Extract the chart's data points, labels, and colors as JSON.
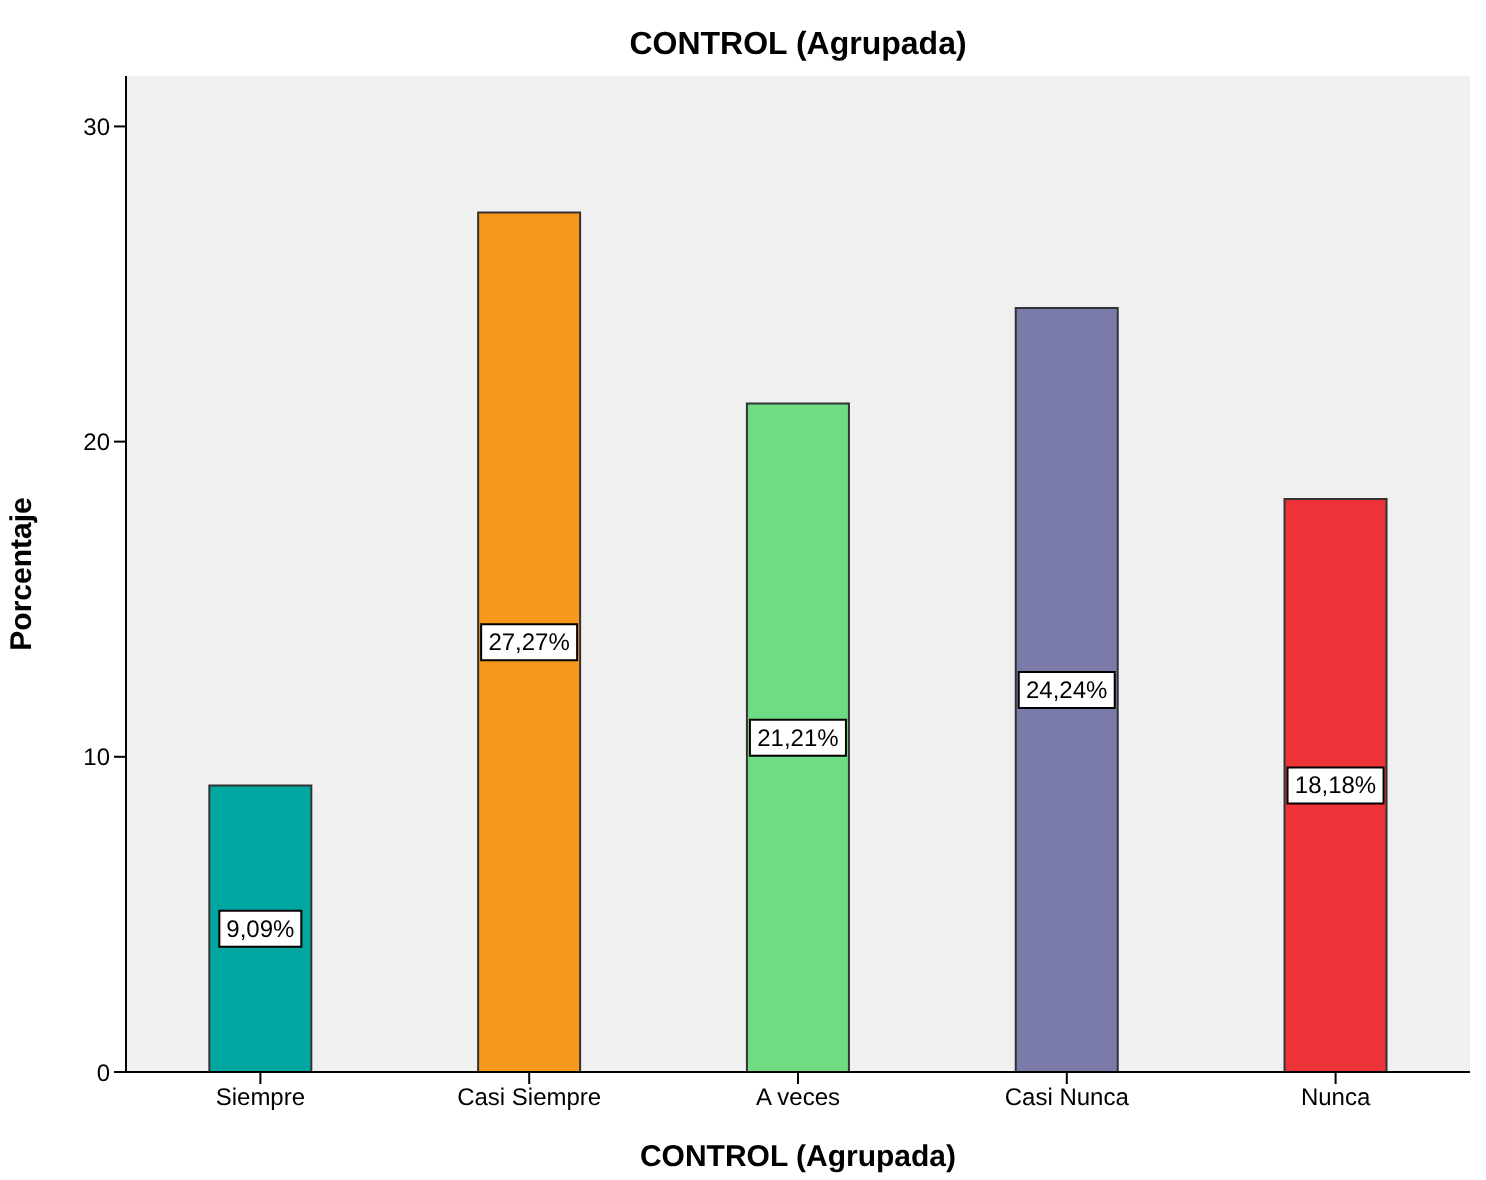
{
  "chart_data": {
    "type": "bar",
    "title": "CONTROL (Agrupada)",
    "xlabel": "CONTROL (Agrupada)",
    "ylabel": "Porcentaje",
    "categories": [
      "Siempre",
      "Casi Siempre",
      "A veces",
      "Casi Nunca",
      "Nunca"
    ],
    "values": [
      9.09,
      27.27,
      21.21,
      24.24,
      18.18
    ],
    "value_labels": [
      "9,09%",
      "27,27%",
      "21,21%",
      "24,24%",
      "18,18%"
    ],
    "colors": [
      "#00a6a0",
      "#f7981d",
      "#6fdc84",
      "#7a7ba8",
      "#ee3338"
    ],
    "ylim": [
      0,
      31.6
    ],
    "yticks": [
      0,
      10,
      20,
      30
    ],
    "legend": false
  }
}
